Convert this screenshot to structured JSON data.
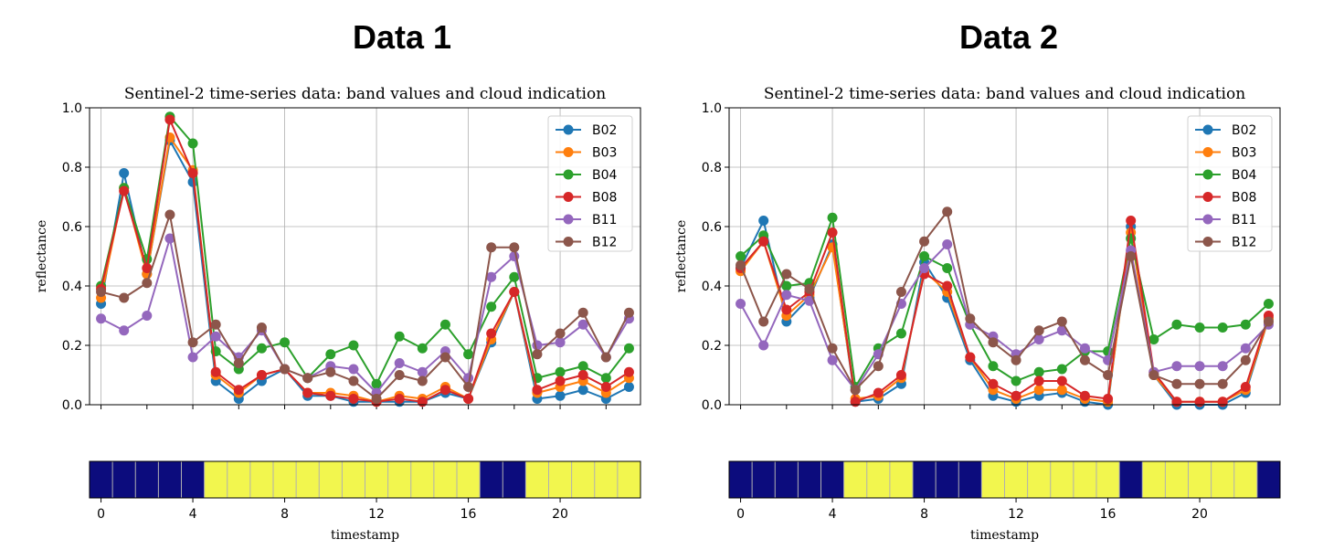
{
  "panels": [
    {
      "heading": "Data 1"
    },
    {
      "heading": "Data 2"
    }
  ],
  "chart_data": [
    {
      "type": "line",
      "title": "Sentinel-2 time-series data: band values and cloud indication",
      "xlabel": "",
      "ylabel": "reflectance",
      "ylim": [
        0,
        1.0
      ],
      "xlim": [
        -0.5,
        23.5
      ],
      "yticks": [
        "0.0",
        "0.2",
        "0.4",
        "0.6",
        "0.8",
        "1.0"
      ],
      "grid": true,
      "legend": "upper right",
      "x": [
        0,
        1,
        2,
        3,
        4,
        5,
        6,
        7,
        8,
        9,
        10,
        11,
        12,
        13,
        14,
        15,
        16,
        17,
        18,
        19,
        20,
        21,
        22,
        23
      ],
      "series": [
        {
          "name": "B02",
          "color": "#1f77b4",
          "values": [
            0.34,
            0.78,
            0.44,
            0.89,
            0.75,
            0.08,
            0.02,
            0.08,
            0.12,
            0.03,
            0.03,
            0.01,
            0.01,
            0.01,
            0.01,
            0.04,
            0.02,
            0.21,
            0.38,
            0.02,
            0.03,
            0.05,
            0.02,
            0.06
          ]
        },
        {
          "name": "B03",
          "color": "#ff7f0e",
          "values": [
            0.36,
            0.73,
            0.44,
            0.9,
            0.79,
            0.1,
            0.04,
            0.1,
            0.12,
            0.04,
            0.04,
            0.03,
            0.01,
            0.03,
            0.02,
            0.06,
            0.02,
            0.22,
            0.38,
            0.04,
            0.06,
            0.08,
            0.04,
            0.09
          ]
        },
        {
          "name": "B04",
          "color": "#2ca02c",
          "values": [
            0.4,
            0.73,
            0.49,
            0.97,
            0.88,
            0.18,
            0.12,
            0.19,
            0.21,
            0.09,
            0.17,
            0.2,
            0.07,
            0.23,
            0.19,
            0.27,
            0.17,
            0.33,
            0.43,
            0.09,
            0.11,
            0.13,
            0.09,
            0.19
          ]
        },
        {
          "name": "B08",
          "color": "#d62728",
          "values": [
            0.39,
            0.72,
            0.46,
            0.96,
            0.78,
            0.11,
            0.05,
            0.1,
            0.12,
            0.04,
            0.03,
            0.02,
            0.01,
            0.02,
            0.01,
            0.05,
            0.02,
            0.24,
            0.38,
            0.05,
            0.08,
            0.1,
            0.06,
            0.11
          ]
        },
        {
          "name": "B11",
          "color": "#9467bd",
          "values": [
            0.29,
            0.25,
            0.3,
            0.56,
            0.16,
            0.23,
            0.16,
            0.25,
            0.12,
            0.09,
            0.13,
            0.12,
            0.04,
            0.14,
            0.11,
            0.18,
            0.09,
            0.43,
            0.5,
            0.2,
            0.21,
            0.27,
            0.16,
            0.29
          ]
        },
        {
          "name": "B12",
          "color": "#8c564b",
          "values": [
            0.38,
            0.36,
            0.41,
            0.64,
            0.21,
            0.27,
            0.14,
            0.26,
            0.12,
            0.09,
            0.11,
            0.08,
            0.02,
            0.1,
            0.08,
            0.16,
            0.06,
            0.53,
            0.53,
            0.17,
            0.24,
            0.31,
            0.16,
            0.31
          ]
        }
      ],
      "cloud_strip": {
        "xlabel": "timestamp",
        "xticks": [
          "0",
          "4",
          "8",
          "12",
          "16",
          "20"
        ],
        "xtick_values": [
          0,
          4,
          8,
          12,
          16,
          20
        ],
        "values": [
          1,
          1,
          1,
          1,
          1,
          0,
          0,
          0,
          0,
          0,
          0,
          0,
          0,
          0,
          0,
          0,
          0,
          1,
          1,
          0,
          0,
          0,
          0,
          0
        ],
        "colors": {
          "1": "#0c0c7d",
          "0": "#f2f64e"
        }
      }
    },
    {
      "type": "line",
      "title": "Sentinel-2 time-series data: band values and cloud indication",
      "xlabel": "",
      "ylabel": "reflectance",
      "ylim": [
        0,
        1.0
      ],
      "xlim": [
        -0.5,
        23.5
      ],
      "yticks": [
        "0.0",
        "0.2",
        "0.4",
        "0.6",
        "0.8",
        "1.0"
      ],
      "grid": true,
      "legend": "upper right",
      "x": [
        0,
        1,
        2,
        3,
        4,
        5,
        6,
        7,
        8,
        9,
        10,
        11,
        12,
        13,
        14,
        15,
        16,
        17,
        18,
        19,
        20,
        21,
        22,
        23
      ],
      "series": [
        {
          "name": "B02",
          "color": "#1f77b4",
          "values": [
            0.46,
            0.62,
            0.28,
            0.36,
            0.54,
            0.01,
            0.02,
            0.07,
            0.48,
            0.36,
            0.15,
            0.03,
            0.01,
            0.03,
            0.04,
            0.01,
            0.0,
            0.6,
            0.1,
            0.0,
            0.0,
            0.0,
            0.04,
            0.29
          ]
        },
        {
          "name": "B03",
          "color": "#ff7f0e",
          "values": [
            0.45,
            0.55,
            0.3,
            0.37,
            0.53,
            0.02,
            0.03,
            0.09,
            0.45,
            0.38,
            0.16,
            0.05,
            0.02,
            0.05,
            0.05,
            0.02,
            0.01,
            0.58,
            0.1,
            0.01,
            0.01,
            0.01,
            0.05,
            0.29
          ]
        },
        {
          "name": "B04",
          "color": "#2ca02c",
          "values": [
            0.5,
            0.57,
            0.4,
            0.41,
            0.63,
            0.06,
            0.19,
            0.24,
            0.5,
            0.46,
            0.27,
            0.13,
            0.08,
            0.11,
            0.12,
            0.18,
            0.18,
            0.56,
            0.22,
            0.27,
            0.26,
            0.26,
            0.27,
            0.34
          ]
        },
        {
          "name": "B08",
          "color": "#d62728",
          "values": [
            0.46,
            0.55,
            0.32,
            0.38,
            0.58,
            0.01,
            0.04,
            0.1,
            0.44,
            0.4,
            0.16,
            0.07,
            0.03,
            0.08,
            0.08,
            0.03,
            0.02,
            0.62,
            0.11,
            0.01,
            0.01,
            0.01,
            0.06,
            0.3
          ]
        },
        {
          "name": "B11",
          "color": "#9467bd",
          "values": [
            0.34,
            0.2,
            0.37,
            0.35,
            0.15,
            0.05,
            0.17,
            0.34,
            0.46,
            0.54,
            0.27,
            0.23,
            0.17,
            0.22,
            0.25,
            0.19,
            0.15,
            0.52,
            0.11,
            0.13,
            0.13,
            0.13,
            0.19,
            0.27
          ]
        },
        {
          "name": "B12",
          "color": "#8c564b",
          "values": [
            0.47,
            0.28,
            0.44,
            0.39,
            0.19,
            0.05,
            0.13,
            0.38,
            0.55,
            0.65,
            0.29,
            0.21,
            0.15,
            0.25,
            0.28,
            0.15,
            0.1,
            0.5,
            0.1,
            0.07,
            0.07,
            0.07,
            0.15,
            0.28
          ]
        }
      ],
      "cloud_strip": {
        "xlabel": "timestamp",
        "xticks": [
          "0",
          "4",
          "8",
          "12",
          "16",
          "20"
        ],
        "xtick_values": [
          0,
          4,
          8,
          12,
          16,
          20
        ],
        "values": [
          1,
          1,
          1,
          1,
          1,
          0,
          0,
          0,
          1,
          1,
          1,
          0,
          0,
          0,
          0,
          0,
          0,
          1,
          0,
          0,
          0,
          0,
          0,
          1
        ],
        "colors": {
          "1": "#0c0c7d",
          "0": "#f2f64e"
        }
      }
    }
  ]
}
